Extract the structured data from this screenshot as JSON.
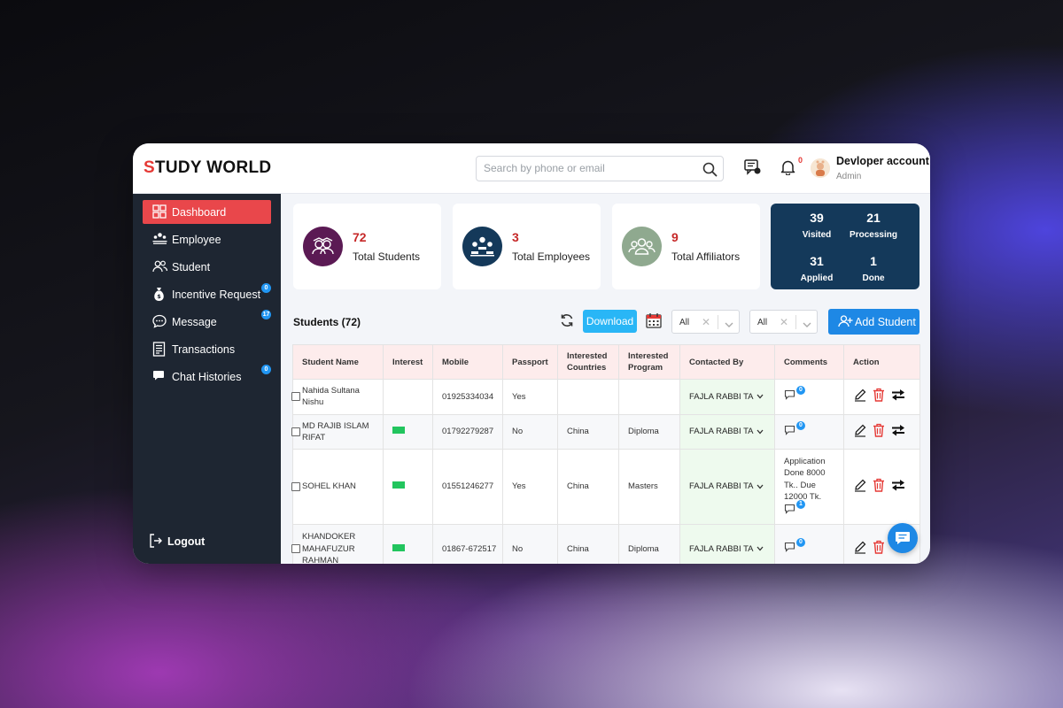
{
  "brand": {
    "first_letter": "S",
    "rest": "TUDY WORLD",
    "accent_color": "#e53935"
  },
  "search": {
    "placeholder": "Search by phone or email",
    "value": ""
  },
  "header": {
    "notification_count": "0",
    "account_name": "Devloper account",
    "account_role": "Admin"
  },
  "sidebar": {
    "items": [
      {
        "label": "Dashboard",
        "icon": "dashboard-icon",
        "active": true
      },
      {
        "label": "Employee",
        "icon": "employee-icon"
      },
      {
        "label": "Student",
        "icon": "student-icon"
      },
      {
        "label": "Incentive Request",
        "icon": "money-bag-icon",
        "badge": "0"
      },
      {
        "label": "Message",
        "icon": "message-icon",
        "badge": "17"
      },
      {
        "label": "Transactions",
        "icon": "receipt-icon"
      },
      {
        "label": "Chat Histories",
        "icon": "chat-icon",
        "badge": "0"
      }
    ],
    "logout_label": "Logout"
  },
  "stats": [
    {
      "value": "72",
      "label": "Total Students",
      "color": "#5b1a54"
    },
    {
      "value": "3",
      "label": "Total Employees",
      "color": "#14395a"
    },
    {
      "value": "9",
      "label": "Total Affiliators",
      "color": "#8fa98f"
    }
  ],
  "summary": {
    "visited_value": "39",
    "visited_label": "Visited",
    "processing_value": "21",
    "processing_label": "Processing",
    "applied_value": "31",
    "applied_label": "Applied",
    "done_value": "1",
    "done_label": "Done",
    "color": "#14395a"
  },
  "toolbar": {
    "title": "Students (72)",
    "download_label": "Download",
    "filter1_value": "All",
    "filter2_value": "All",
    "add_label": "Add Student"
  },
  "table": {
    "headers": [
      "Student Name",
      "Interest",
      "Mobile",
      "Passport",
      "Interested Countries",
      "Interested Program",
      "Contacted By",
      "Comments",
      "Action"
    ],
    "rows": [
      {
        "name": "Nahida Sultana Nishu",
        "interest": false,
        "mobile": "01925334034",
        "passport": "Yes",
        "country": "",
        "program": "",
        "contacted_by": "FAJLA RABBI TA",
        "comment": "",
        "comment_count": "0"
      },
      {
        "name": "MD RAJIB ISLAM RIFAT",
        "interest": true,
        "mobile": "01792279287",
        "passport": "No",
        "country": "China",
        "program": "Diploma",
        "contacted_by": "FAJLA RABBI TA",
        "comment": "",
        "comment_count": "0"
      },
      {
        "name": "SOHEL KHAN",
        "interest": true,
        "mobile": "01551246277",
        "passport": "Yes",
        "country": "China",
        "program": "Masters",
        "contacted_by": "FAJLA RABBI TA",
        "comment": "Application Done 8000 Tk.. Due 12000 Tk.",
        "comment_count": "1"
      },
      {
        "name": "KHANDOKER MAHAFUZUR RAHMAN",
        "interest": true,
        "mobile": "01867-672517",
        "passport": "No",
        "country": "China",
        "program": "Diploma",
        "contacted_by": "FAJLA RABBI TA",
        "comment": "",
        "comment_count": "0"
      }
    ],
    "interest_color": "#22c55e",
    "header_bg": "#fdecec"
  }
}
